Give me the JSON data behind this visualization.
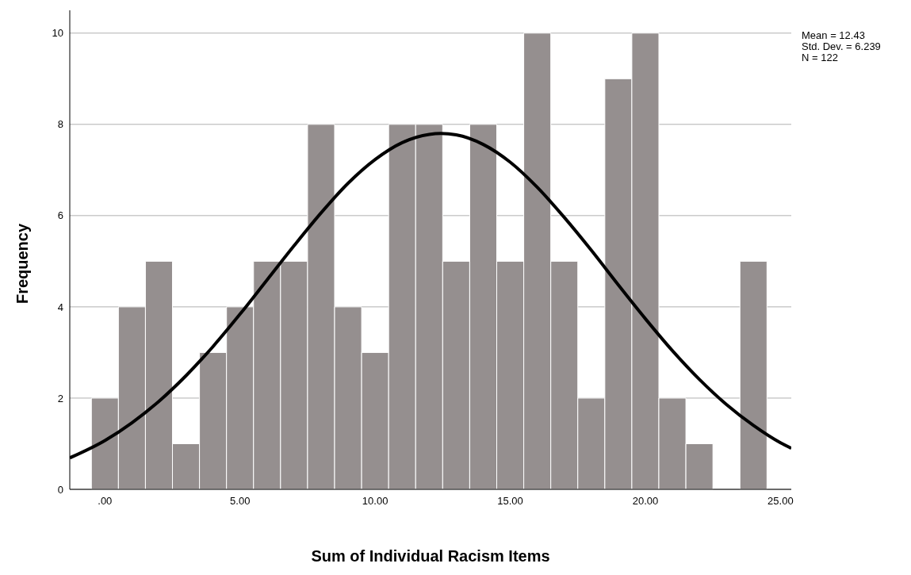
{
  "chart_data": {
    "type": "histogram",
    "xlabel": "Sum of Individual Racism Items",
    "ylabel": "Frequency",
    "bins": [
      -0.5,
      0.5,
      1.5,
      2.5,
      3.5,
      4.5,
      5.5,
      6.5,
      7.5,
      8.5,
      9.5,
      10.5,
      11.5,
      12.5,
      13.5,
      14.5,
      15.5,
      16.5,
      17.5,
      18.5,
      19.5,
      20.5,
      21.5,
      22.5,
      23.5,
      24.5
    ],
    "values": [
      2,
      4,
      5,
      1,
      3,
      4,
      5,
      5,
      8,
      4,
      3,
      8,
      8,
      5,
      8,
      5,
      10,
      5,
      2,
      9,
      10,
      2,
      1,
      0,
      5
    ],
    "color": "#958f8f",
    "series": [
      {
        "type": "line",
        "color": "#000000",
        "x": [
          -1.3,
          0,
          1,
          2,
          3,
          4,
          5,
          6,
          7,
          8,
          9,
          10,
          11,
          12,
          12.43,
          13,
          14,
          15,
          16,
          17,
          18,
          19,
          20,
          21,
          22,
          23,
          24,
          25,
          25.4
        ],
        "values": [
          0.69,
          1.07,
          1.46,
          1.93,
          2.49,
          3.13,
          3.84,
          4.59,
          5.34,
          6.06,
          6.71,
          7.23,
          7.6,
          7.78,
          7.8,
          7.77,
          7.56,
          7.17,
          6.62,
          5.96,
          5.24,
          4.48,
          3.74,
          3.04,
          2.41,
          1.86,
          1.4,
          1.02,
          0.9
        ]
      }
    ],
    "xlim": [
      -1.3,
      25.4
    ],
    "ylim": [
      0,
      10.5
    ],
    "xticks": [
      {
        "value": 0,
        "label": ".00"
      },
      {
        "value": 5,
        "label": "5.00"
      },
      {
        "value": 10,
        "label": "10.00"
      },
      {
        "value": 15,
        "label": "15.00"
      },
      {
        "value": 20,
        "label": "20.00"
      },
      {
        "value": 25,
        "label": "25.00"
      }
    ],
    "yticks": [
      0,
      2,
      4,
      6,
      8,
      10
    ],
    "grid": "y",
    "marker": "none",
    "annotations": [
      "Mean = 12.43",
      "Std. Dev. = 6.239",
      "N = 122"
    ]
  }
}
